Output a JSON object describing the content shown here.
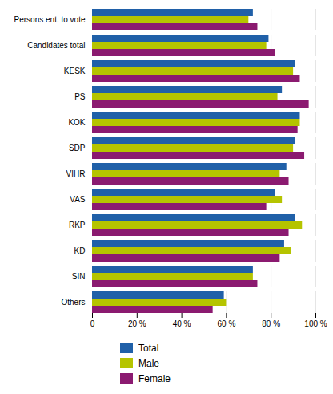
{
  "chart_data": {
    "type": "bar",
    "orientation": "horizontal",
    "categories": [
      "Persons ent. to vote",
      "Candidates total",
      "KESK",
      "PS",
      "KOK",
      "SDP",
      "VIHR",
      "VAS",
      "RKP",
      "KD",
      "SIN",
      "Others"
    ],
    "series": [
      {
        "name": "Total",
        "color": "#2060a8",
        "values": [
          72,
          79,
          91,
          85,
          93,
          91,
          87,
          82,
          91,
          86,
          72,
          59
        ]
      },
      {
        "name": "Male",
        "color": "#b5c400",
        "values": [
          70,
          78,
          90,
          83,
          93,
          90,
          84,
          85,
          94,
          89,
          72,
          60
        ]
      },
      {
        "name": "Female",
        "color": "#8b1a70",
        "values": [
          74,
          82,
          93,
          97,
          92,
          95,
          88,
          78,
          88,
          84,
          74,
          54
        ]
      }
    ],
    "xlim": [
      0,
      100
    ],
    "xticks": [
      0,
      {
        "value": 20,
        "label": "20 %"
      },
      {
        "value": 40,
        "label": "40 %"
      },
      {
        "value": 60,
        "label": "60 %"
      },
      {
        "value": 80,
        "label": "80 %"
      },
      {
        "value": 100,
        "label": "100 %"
      }
    ],
    "grid": true,
    "legend": "bottom"
  }
}
